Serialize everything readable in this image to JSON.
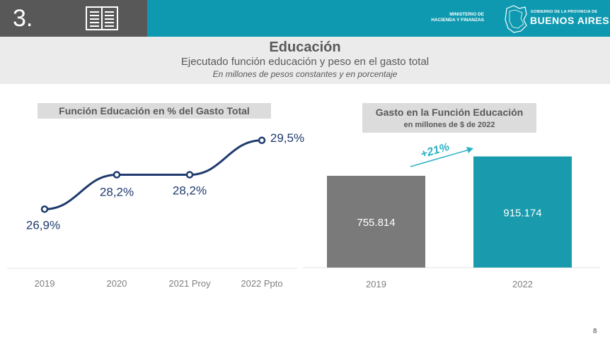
{
  "header": {
    "section_number": "3.",
    "ministry_line1": "MINISTERIO DE",
    "ministry_line2": "HACIENDA Y FINANZAS",
    "gov_small": "GOBIERNO DE LA PROVINCIA DE",
    "gov_big": "BUENOS AIRES",
    "book_icon": "book-icon",
    "colors": {
      "bar": "#0f99b0",
      "section": "#585858"
    }
  },
  "title": {
    "main": "Educación",
    "subtitle": "Ejecutado función educación y peso en el gasto total",
    "note": "En millones de pesos constantes y en porcentaje"
  },
  "footer": {
    "page": "8"
  },
  "chart_data": [
    {
      "type": "line",
      "title": "Función Educación en % del Gasto Total",
      "categories": [
        "2019",
        "2020",
        "2021 Proy",
        "2022 Ppto"
      ],
      "series": [
        {
          "values": [
            26.9,
            28.2,
            28.2,
            29.5
          ],
          "labels": [
            "26,9%",
            "28,2%",
            "28,2%",
            "29,5%"
          ],
          "color": "#1f3a6e"
        }
      ],
      "ylim": [
        26.0,
        30.0
      ],
      "grid": false
    },
    {
      "type": "bar",
      "title": "Gasto en la Función Educación",
      "subtitle": "en millones de $ de 2022",
      "categories": [
        "2019",
        "2022"
      ],
      "values": [
        755814,
        915174
      ],
      "value_labels": [
        "755.814",
        "915.174"
      ],
      "colors": [
        "#7a7a7a",
        "#1a9bad"
      ],
      "ylim": [
        0,
        1000000
      ],
      "annotation": "+21%",
      "annotation_color": "#2eb1c4"
    }
  ]
}
